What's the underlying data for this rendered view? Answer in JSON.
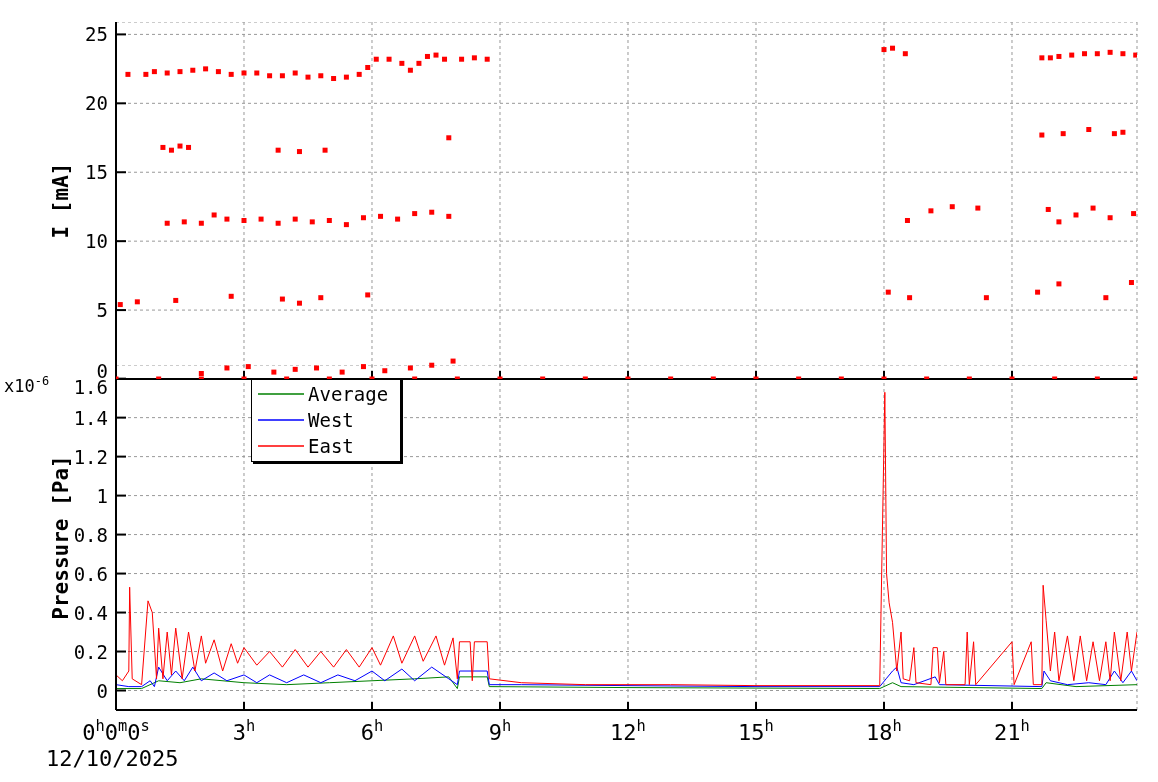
{
  "chart_data": [
    {
      "type": "scatter",
      "ylabel": "I [mA]",
      "xlim": [
        0,
        23.93
      ],
      "ylim": [
        0,
        25.9
      ],
      "xticks": [
        {
          "value": 0,
          "label": null
        },
        {
          "value": 3,
          "label": null
        },
        {
          "value": 6,
          "label": null
        },
        {
          "value": 9,
          "label": null
        },
        {
          "value": 12,
          "label": null
        },
        {
          "value": 15,
          "label": null
        },
        {
          "value": 18,
          "label": null
        },
        {
          "value": 21,
          "label": null
        }
      ],
      "yticks": [
        0,
        5,
        10,
        15,
        20,
        25
      ],
      "grid": true,
      "tick_labels": "y",
      "marker": "square",
      "legend": false,
      "series": [
        {
          "color": "#ff0000",
          "x": [
            0.28,
            0.7,
            0.9,
            1.2,
            1.5,
            1.8,
            2.1,
            2.4,
            2.7,
            3.0,
            3.3,
            3.6,
            3.9,
            4.2,
            4.5,
            4.8,
            5.1,
            5.4,
            5.7,
            5.9,
            6.1,
            6.4,
            6.7,
            6.9,
            7.1,
            7.3,
            7.5,
            7.7,
            8.1,
            8.4,
            8.7,
            18.0,
            18.2,
            18.5,
            21.7,
            21.9,
            22.1,
            22.4,
            22.7,
            23.0,
            23.3,
            23.6,
            23.9,
            1.1,
            1.3,
            1.5,
            1.7,
            3.8,
            4.3,
            4.9,
            7.8,
            21.7,
            22.2,
            22.8,
            23.4,
            23.6,
            1.2,
            1.6,
            2.0,
            2.3,
            2.6,
            3.0,
            3.4,
            3.8,
            4.2,
            4.6,
            5.0,
            5.4,
            5.8,
            6.2,
            6.6,
            7.0,
            7.4,
            7.8,
            18.55,
            19.1,
            19.6,
            20.2,
            21.85,
            22.1,
            22.5,
            22.9,
            23.3,
            23.85,
            0.1,
            0.5,
            1.4,
            2.7,
            3.9,
            4.3,
            4.8,
            5.9,
            18.1,
            18.6,
            20.4,
            21.6,
            22.1,
            23.2,
            23.8,
            2.0,
            2.6,
            3.1,
            3.7,
            4.2,
            4.7,
            5.3,
            5.8,
            6.3,
            6.9,
            7.4,
            7.9,
            0,
            1,
            2,
            3,
            4,
            5,
            6,
            7,
            8,
            9,
            10,
            11,
            12,
            13,
            14,
            15,
            16,
            17,
            18,
            19,
            20,
            21,
            22,
            23,
            23.9
          ],
          "values": [
            22.1,
            22.1,
            22.3,
            22.2,
            22.3,
            22.4,
            22.5,
            22.3,
            22.1,
            22.2,
            22.2,
            22.0,
            22.0,
            22.2,
            21.9,
            22.0,
            21.8,
            21.9,
            22.1,
            22.6,
            23.2,
            23.2,
            22.9,
            22.4,
            22.9,
            23.4,
            23.5,
            23.2,
            23.2,
            23.3,
            23.2,
            23.9,
            24.0,
            23.6,
            23.3,
            23.3,
            23.4,
            23.5,
            23.6,
            23.6,
            23.7,
            23.6,
            23.5,
            16.8,
            16.6,
            16.9,
            16.8,
            16.6,
            16.5,
            16.6,
            17.5,
            17.7,
            17.8,
            18.1,
            17.8,
            17.9,
            11.3,
            11.4,
            11.3,
            11.9,
            11.6,
            11.5,
            11.6,
            11.3,
            11.6,
            11.4,
            11.5,
            11.2,
            11.7,
            11.8,
            11.6,
            12.0,
            12.1,
            11.8,
            11.5,
            12.2,
            12.5,
            12.4,
            12.3,
            11.4,
            11.9,
            12.4,
            11.7,
            12.0,
            5.4,
            5.6,
            5.7,
            6.0,
            5.8,
            5.5,
            5.9,
            6.1,
            6.3,
            5.9,
            5.9,
            6.3,
            6.9,
            5.9,
            7.0,
            0.4,
            0.8,
            0.9,
            0.5,
            0.7,
            0.8,
            0.5,
            0.9,
            0.6,
            0.8,
            1.0,
            1.3,
            0,
            0,
            0,
            0,
            0,
            0,
            0,
            0,
            0,
            0,
            0,
            0,
            0,
            0,
            0,
            0,
            0,
            0,
            0,
            0,
            0,
            0,
            0,
            0,
            0
          ]
        }
      ]
    },
    {
      "type": "line",
      "ylabel": "Pressure [Pa]",
      "annotations": [
        "x10$^{-6}$",
        "12/10/2025"
      ],
      "xlim": [
        0,
        23.93
      ],
      "ylim": [
        -0.1,
        1.67
      ],
      "xticks": [
        {
          "value": 0,
          "label": "0$^{h}$0$^{m}$0$^{s}$"
        },
        {
          "value": 3,
          "label": "3$^{h}$"
        },
        {
          "value": 6,
          "label": "6$^{h}$"
        },
        {
          "value": 9,
          "label": "9$^{h}$"
        },
        {
          "value": 12,
          "label": "12$^{h}$"
        },
        {
          "value": 15,
          "label": "15$^{h}$"
        },
        {
          "value": 18,
          "label": "18$^{h}$"
        },
        {
          "value": 21,
          "label": "21$^{h}$"
        }
      ],
      "yticks": [
        0,
        0.2,
        0.4,
        0.6,
        0.8,
        1,
        1.2,
        1.4,
        1.6
      ],
      "grid": true,
      "legend": "top left",
      "marker": "none",
      "line_style": "solid",
      "series": [
        {
          "name": "Average",
          "color": "#008000",
          "x": [
            0,
            0.6,
            1.0,
            1.5,
            2.0,
            3.0,
            4.0,
            5.0,
            6.0,
            7.0,
            7.8,
            8.0,
            8.05,
            8.7,
            8.75,
            12,
            17.9,
            18.2,
            18.4,
            21.7,
            21.8,
            22.5,
            23.93
          ],
          "values": [
            0.01,
            0.01,
            0.05,
            0.04,
            0.06,
            0.04,
            0.03,
            0.04,
            0.05,
            0.06,
            0.07,
            0.01,
            0.07,
            0.07,
            0.02,
            0.015,
            0.01,
            0.04,
            0.02,
            0.01,
            0.04,
            0.02,
            0.03
          ]
        },
        {
          "name": "West",
          "color": "#0000ff",
          "x": [
            0,
            0.3,
            0.6,
            0.8,
            0.9,
            1.0,
            1.2,
            1.4,
            1.6,
            1.8,
            2.0,
            2.3,
            2.6,
            3.0,
            3.3,
            3.6,
            4.0,
            4.4,
            4.8,
            5.2,
            5.6,
            6.0,
            6.3,
            6.7,
            7.0,
            7.4,
            7.8,
            8.0,
            8.05,
            8.7,
            8.75,
            9.5,
            12,
            15,
            17.9,
            18.05,
            18.2,
            18.3,
            18.4,
            18.7,
            19.2,
            19.3,
            21.7,
            21.75,
            21.9,
            22.3,
            22.8,
            23.2,
            23.4,
            23.6,
            23.8,
            23.93
          ],
          "values": [
            0.03,
            0.02,
            0.02,
            0.05,
            0.02,
            0.12,
            0.05,
            0.1,
            0.05,
            0.12,
            0.05,
            0.09,
            0.05,
            0.08,
            0.04,
            0.08,
            0.04,
            0.08,
            0.04,
            0.08,
            0.05,
            0.1,
            0.05,
            0.11,
            0.05,
            0.12,
            0.06,
            0.03,
            0.1,
            0.1,
            0.03,
            0.03,
            0.025,
            0.02,
            0.02,
            0.06,
            0.1,
            0.12,
            0.04,
            0.03,
            0.07,
            0.03,
            0.02,
            0.1,
            0.05,
            0.03,
            0.04,
            0.03,
            0.1,
            0.04,
            0.1,
            0.05
          ]
        },
        {
          "name": "East",
          "color": "#ff0000",
          "x": [
            0,
            0.15,
            0.3,
            0.32,
            0.38,
            0.6,
            0.75,
            0.85,
            0.95,
            1.0,
            1.1,
            1.2,
            1.3,
            1.4,
            1.55,
            1.7,
            1.85,
            2.0,
            2.1,
            2.3,
            2.5,
            2.7,
            2.85,
            3.0,
            3.3,
            3.6,
            3.9,
            4.2,
            4.5,
            4.8,
            5.1,
            5.4,
            5.7,
            6.0,
            6.2,
            6.5,
            6.7,
            7.0,
            7.2,
            7.5,
            7.7,
            7.9,
            8.0,
            8.05,
            8.3,
            8.35,
            8.4,
            8.7,
            8.75,
            9.5,
            11,
            13,
            15,
            17.9,
            18.02,
            18.06,
            18.12,
            18.2,
            18.3,
            18.4,
            18.45,
            18.6,
            18.7,
            18.75,
            19.1,
            19.15,
            19.25,
            19.3,
            19.4,
            19.45,
            19.9,
            19.95,
            20.0,
            20.1,
            20.15,
            21.0,
            21.05,
            21.45,
            21.5,
            21.7,
            21.73,
            21.8,
            21.9,
            22.0,
            22.1,
            22.3,
            22.45,
            22.6,
            22.75,
            22.9,
            23.05,
            23.2,
            23.3,
            23.4,
            23.55,
            23.7,
            23.8,
            23.93
          ],
          "values": [
            0.08,
            0.05,
            0.1,
            0.53,
            0.06,
            0.03,
            0.46,
            0.4,
            0.06,
            0.32,
            0.06,
            0.3,
            0.08,
            0.32,
            0.06,
            0.3,
            0.1,
            0.28,
            0.14,
            0.26,
            0.1,
            0.24,
            0.14,
            0.22,
            0.13,
            0.2,
            0.12,
            0.21,
            0.12,
            0.2,
            0.12,
            0.21,
            0.12,
            0.22,
            0.13,
            0.28,
            0.14,
            0.28,
            0.15,
            0.28,
            0.13,
            0.27,
            0.06,
            0.25,
            0.25,
            0.05,
            0.25,
            0.25,
            0.06,
            0.04,
            0.03,
            0.03,
            0.025,
            0.025,
            1.53,
            0.6,
            0.45,
            0.35,
            0.1,
            0.3,
            0.06,
            0.05,
            0.22,
            0.04,
            0.03,
            0.22,
            0.22,
            0.04,
            0.2,
            0.03,
            0.03,
            0.3,
            0.03,
            0.25,
            0.03,
            0.25,
            0.03,
            0.25,
            0.03,
            0.03,
            0.54,
            0.36,
            0.1,
            0.3,
            0.05,
            0.28,
            0.05,
            0.28,
            0.05,
            0.25,
            0.05,
            0.25,
            0.05,
            0.3,
            0.05,
            0.3,
            0.1,
            0.3
          ]
        }
      ]
    }
  ]
}
